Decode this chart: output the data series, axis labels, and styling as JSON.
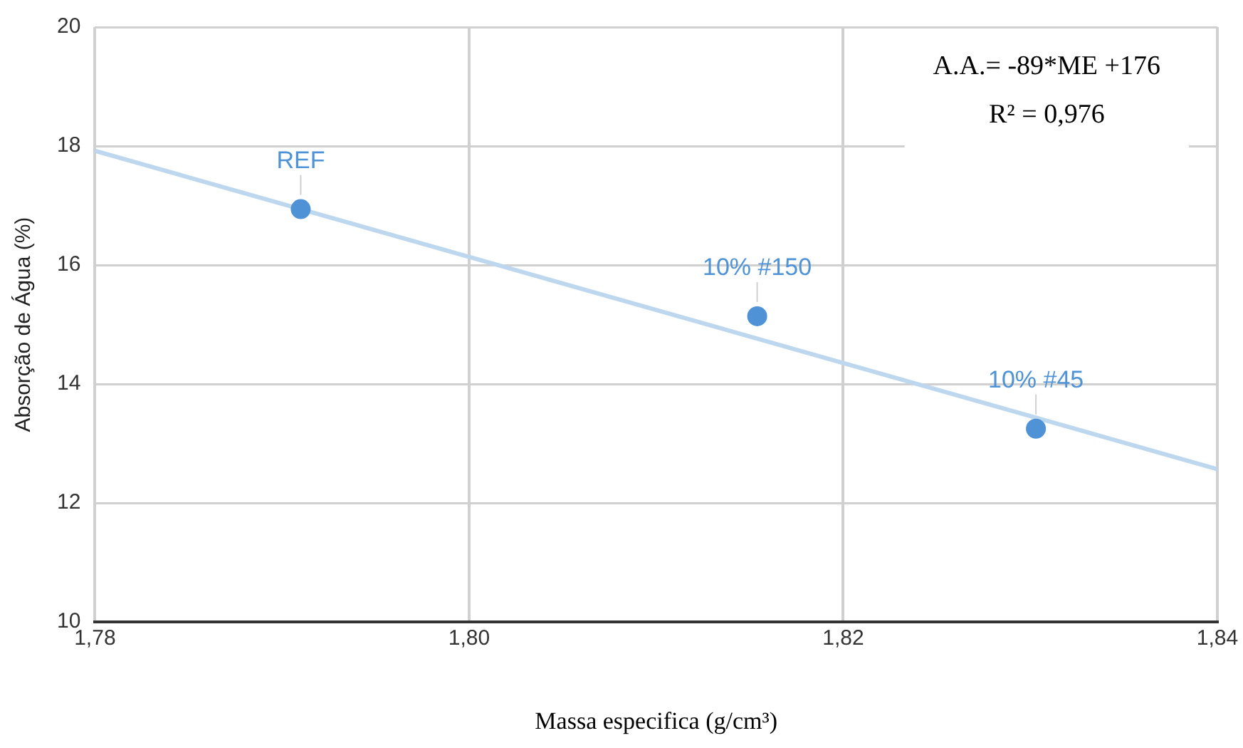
{
  "chart_data": {
    "type": "scatter",
    "xlabel": "Massa especifica (g/cm³)",
    "ylabel": "Absorção de Água (%)",
    "xlim": [
      1.78,
      1.84
    ],
    "xticks": [
      {
        "value": 1.78,
        "label": "1,78"
      },
      {
        "value": 1.8,
        "label": "1,80"
      },
      {
        "value": 1.82,
        "label": "1,82"
      },
      {
        "value": 1.84,
        "label": "1,84"
      }
    ],
    "ylim": [
      10,
      20
    ],
    "yticks": [
      10,
      12,
      14,
      16,
      18,
      20
    ],
    "grid": true,
    "legend": false,
    "marker": "circle",
    "series": [
      {
        "color": "#4f93d6",
        "x": [
          1.791,
          1.8154,
          1.8303
        ],
        "values": [
          16.94,
          15.14,
          13.25
        ]
      },
      {
        "type": "line",
        "color": "#bdd7ee",
        "x": [
          1.78,
          1.84
        ],
        "values": [
          17.92,
          12.57
        ],
        "marker": "none",
        "line_style": "solid"
      }
    ],
    "annotations": [
      {
        "text": "REF",
        "x": 1.791,
        "y": 16.94
      },
      {
        "text": "10% #150",
        "x": 1.8154,
        "y": 15.14
      },
      {
        "text": "10% #45",
        "x": 1.8303,
        "y": 13.25
      },
      "A.A.= -89*ME +176",
      "R² = 0,976"
    ]
  }
}
